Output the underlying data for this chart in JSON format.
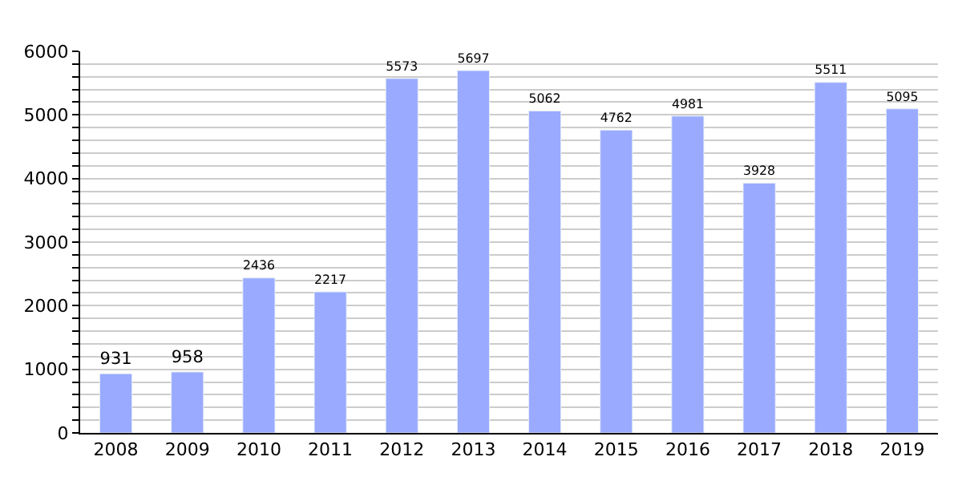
{
  "chart_data": {
    "type": "bar",
    "categories": [
      "2008",
      "2009",
      "2010",
      "2011",
      "2012",
      "2013",
      "2014",
      "2015",
      "2016",
      "2017",
      "2018",
      "2019"
    ],
    "values": [
      931,
      958,
      2436,
      2217,
      5573,
      5697,
      5062,
      4762,
      4981,
      3928,
      5511,
      5095
    ],
    "color": "#99aaff",
    "data_labels": true,
    "ylim": [
      0,
      6000
    ],
    "yticks": [
      0,
      {
        "value": 200,
        "label": null
      },
      {
        "value": 400,
        "label": null
      },
      {
        "value": 600,
        "label": null
      },
      {
        "value": 800,
        "label": null
      },
      1000,
      {
        "value": 1200,
        "label": null
      },
      {
        "value": 1400,
        "label": null
      },
      {
        "value": 1600,
        "label": null
      },
      {
        "value": 1800,
        "label": null
      },
      2000,
      {
        "value": 2200,
        "label": null
      },
      {
        "value": 2400,
        "label": null
      },
      {
        "value": 2600,
        "label": null
      },
      {
        "value": 2800,
        "label": null
      },
      3000,
      {
        "value": 3200,
        "label": null
      },
      {
        "value": 3400,
        "label": null
      },
      {
        "value": 3600,
        "label": null
      },
      {
        "value": 3800,
        "label": null
      },
      4000,
      {
        "value": 4200,
        "label": null
      },
      {
        "value": 4400,
        "label": null
      },
      {
        "value": 4600,
        "label": null
      },
      {
        "value": 4800,
        "label": null
      },
      5000,
      {
        "value": 5200,
        "label": null
      },
      {
        "value": 5400,
        "label": null
      },
      {
        "value": 5600,
        "label": null
      },
      {
        "value": 5800,
        "label": null
      },
      6000
    ],
    "grid": "y",
    "legend": false
  }
}
